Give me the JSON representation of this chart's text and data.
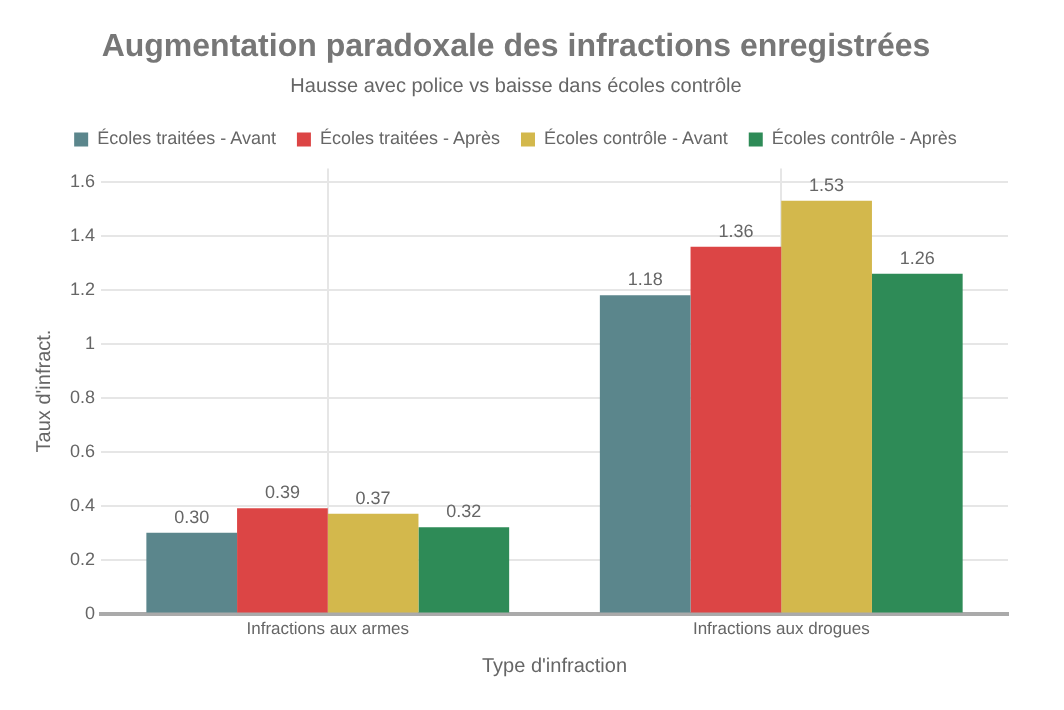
{
  "chart_data": {
    "type": "bar",
    "title": "Augmentation paradoxale des infractions enregistrées",
    "subtitle": "Hausse avec police vs baisse dans écoles contrôle",
    "xlabel": "Type d'infraction",
    "ylabel": "Taux d'infract.",
    "categories": [
      "Infractions aux armes",
      "Infractions aux drogues"
    ],
    "series": [
      {
        "name": "Écoles traitées - Avant",
        "color": "#5b868c",
        "values": [
          0.3,
          1.18
        ],
        "value_labels": [
          "0.30",
          "1.18"
        ]
      },
      {
        "name": "Écoles traitées - Après",
        "color": "#dc4545",
        "values": [
          0.39,
          1.36
        ],
        "value_labels": [
          "0.39",
          "1.36"
        ]
      },
      {
        "name": "Écoles contrôle - Avant",
        "color": "#d3b84c",
        "values": [
          0.37,
          1.53
        ],
        "value_labels": [
          "0.37",
          "1.53"
        ]
      },
      {
        "name": "Écoles contrôle - Après",
        "color": "#2e8b57",
        "values": [
          0.32,
          1.26
        ],
        "value_labels": [
          "0.32",
          "1.26"
        ]
      }
    ],
    "ylim": [
      0,
      1.65
    ],
    "yticks": [
      0,
      0.2,
      0.4,
      0.6,
      0.8,
      1,
      1.2,
      1.4,
      1.6
    ],
    "grid": true,
    "legend": "top"
  }
}
